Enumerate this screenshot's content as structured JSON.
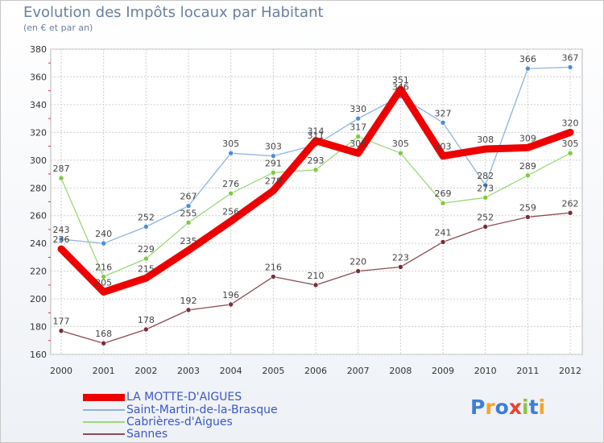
{
  "chart_data": {
    "type": "line",
    "title": "Evolution des Impôts locaux par Habitant",
    "subtitle": "(en € et par an)",
    "xlabel": "",
    "ylabel": "",
    "categories": [
      "2000",
      "2001",
      "2002",
      "2003",
      "2004",
      "2005",
      "2006",
      "2007",
      "2008",
      "2009",
      "2010",
      "2011",
      "2012"
    ],
    "ylim": [
      160,
      380
    ],
    "yticks": [
      160,
      180,
      200,
      220,
      240,
      260,
      280,
      300,
      320,
      340,
      360,
      380
    ],
    "grid": true,
    "legend_position": "bottom-left",
    "series": [
      {
        "name": "LA MOTTE-D'AIGUES",
        "color": "#ee0000",
        "line_color": "#ee0000",
        "width": 9,
        "values": [
          236,
          205,
          215,
          235,
          256,
          278,
          314,
          305,
          351,
          303,
          308,
          309,
          320
        ]
      },
      {
        "name": "Saint-Martin-de-la-Brasque",
        "color": "#4a8ed6",
        "line_color": "#8fb3dd",
        "width": 1.3,
        "values": [
          243,
          240,
          252,
          267,
          305,
          303,
          311,
          330,
          346,
          327,
          282,
          366,
          367
        ]
      },
      {
        "name": "Cabrières-d'Aigues",
        "color": "#7ecb3c",
        "line_color": "#9ad87a",
        "width": 1.3,
        "values": [
          287,
          216,
          229,
          255,
          276,
          291,
          293,
          317,
          305,
          269,
          273,
          289,
          305
        ]
      },
      {
        "name": "Sannes",
        "color": "#7a2e37",
        "line_color": "#8d4a52",
        "width": 1.3,
        "values": [
          177,
          168,
          178,
          192,
          196,
          216,
          210,
          220,
          223,
          241,
          252,
          259,
          262
        ]
      }
    ]
  },
  "logo": {
    "letters": [
      "P",
      "r",
      "o",
      "x",
      "i",
      "t",
      "i"
    ],
    "colors": [
      "#3d7ed8",
      "#f5a623",
      "#3d7ed8",
      "#e8432b",
      "#8bc34a",
      "#3d7ed8",
      "#f5a623"
    ]
  }
}
